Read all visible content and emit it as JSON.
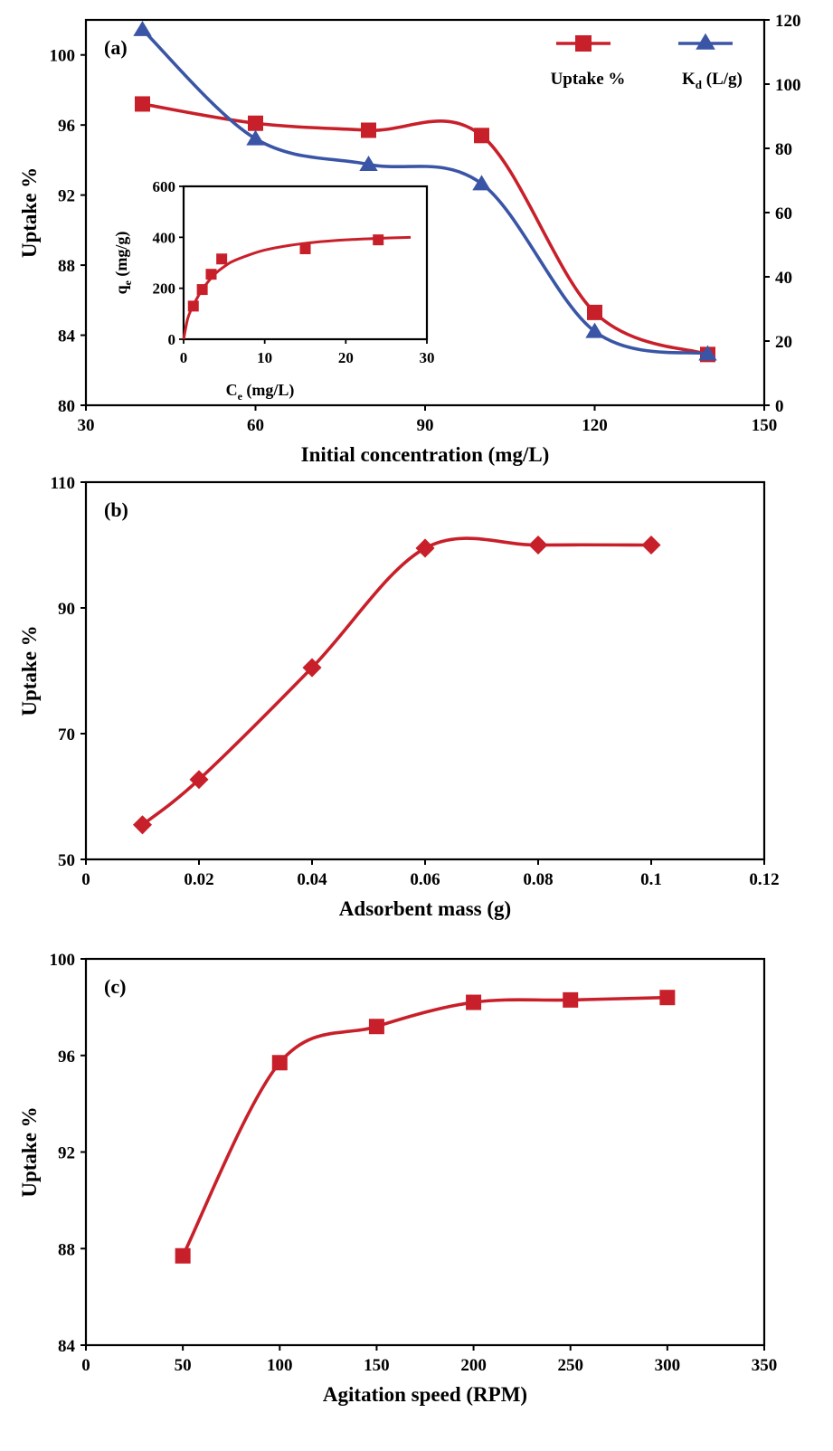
{
  "chart_data": [
    {
      "panel_label": "(a)",
      "type": "line",
      "xlabel": "Initial concentration (mg/L)",
      "ylabel": "Uptake %",
      "xlim": [
        30,
        150
      ],
      "xticks": [
        30,
        60,
        90,
        120,
        150
      ],
      "ylim": [
        80,
        102
      ],
      "yticks": [
        80,
        84,
        88,
        92,
        96,
        100
      ],
      "y2lim": [
        0,
        120
      ],
      "y2ticks": [
        0,
        20,
        40,
        60,
        80,
        100,
        120
      ],
      "legend_position": "top-right",
      "series": [
        {
          "name": "Uptake %",
          "axis": "left",
          "marker": "square",
          "color": "#c8202a",
          "x": [
            40,
            60,
            80,
            100,
            120,
            140
          ],
          "y": [
            97.2,
            96.1,
            95.7,
            95.4,
            85.3,
            82.9
          ]
        },
        {
          "name": "K",
          "name_subscript": "d",
          "name_suffix": " (L/g)",
          "axis": "right",
          "marker": "triangle",
          "color": "#3a55a6",
          "x": [
            40,
            60,
            80,
            100,
            120,
            140
          ],
          "y": [
            117,
            83,
            75,
            69,
            23,
            16
          ]
        }
      ],
      "inset": {
        "type": "scatter",
        "xlabel_main": "C",
        "xlabel_sub": "e",
        "xlabel_suffix": " (mg/L)",
        "ylabel_main": "q",
        "ylabel_sub": "e",
        "ylabel_suffix": " (mg/g)",
        "xlim": [
          0,
          30
        ],
        "xticks": [
          0,
          10,
          20,
          30
        ],
        "ylim": [
          0,
          600
        ],
        "yticks": [
          0,
          200,
          400,
          600
        ],
        "color": "#c8202a",
        "points": {
          "x": [
            1.2,
            2.3,
            3.4,
            4.7,
            15.0,
            24.0
          ],
          "y": [
            130,
            195,
            255,
            315,
            355,
            390
          ]
        },
        "fit": {
          "x": [
            0,
            0.5,
            1,
            2,
            3,
            4,
            5,
            6,
            8,
            10,
            13,
            16,
            20,
            24,
            28
          ],
          "y": [
            0,
            80,
            120,
            180,
            225,
            260,
            285,
            305,
            330,
            350,
            368,
            380,
            390,
            396,
            400
          ]
        }
      }
    },
    {
      "panel_label": "(b)",
      "type": "line",
      "xlabel": "Adsorbent mass (g)",
      "ylabel": "Uptake %",
      "xlim": [
        0,
        0.12
      ],
      "xticks": [
        "0",
        "0.02",
        "0.04",
        "0.06",
        "0.08",
        "0.1",
        "0.12"
      ],
      "ylim": [
        50,
        110
      ],
      "yticks": [
        50,
        70,
        90,
        110
      ],
      "series": [
        {
          "marker": "diamond",
          "color": "#c8202a",
          "x": [
            0.01,
            0.02,
            0.04,
            0.06,
            0.08,
            0.1
          ],
          "y": [
            55.5,
            62.7,
            80.5,
            99.5,
            100.0,
            100.0
          ]
        }
      ]
    },
    {
      "panel_label": "(c)",
      "type": "line",
      "xlabel": "Agitation speed (RPM)",
      "ylabel": "Uptake %",
      "xlim": [
        0,
        350
      ],
      "xticks": [
        0,
        50,
        100,
        150,
        200,
        250,
        300,
        350
      ],
      "ylim": [
        84,
        100
      ],
      "yticks": [
        84,
        88,
        92,
        96,
        100
      ],
      "series": [
        {
          "marker": "square",
          "color": "#c8202a",
          "x": [
            50,
            100,
            150,
            200,
            250,
            300
          ],
          "y": [
            87.7,
            95.7,
            97.2,
            98.2,
            98.3,
            98.4
          ]
        }
      ]
    }
  ]
}
